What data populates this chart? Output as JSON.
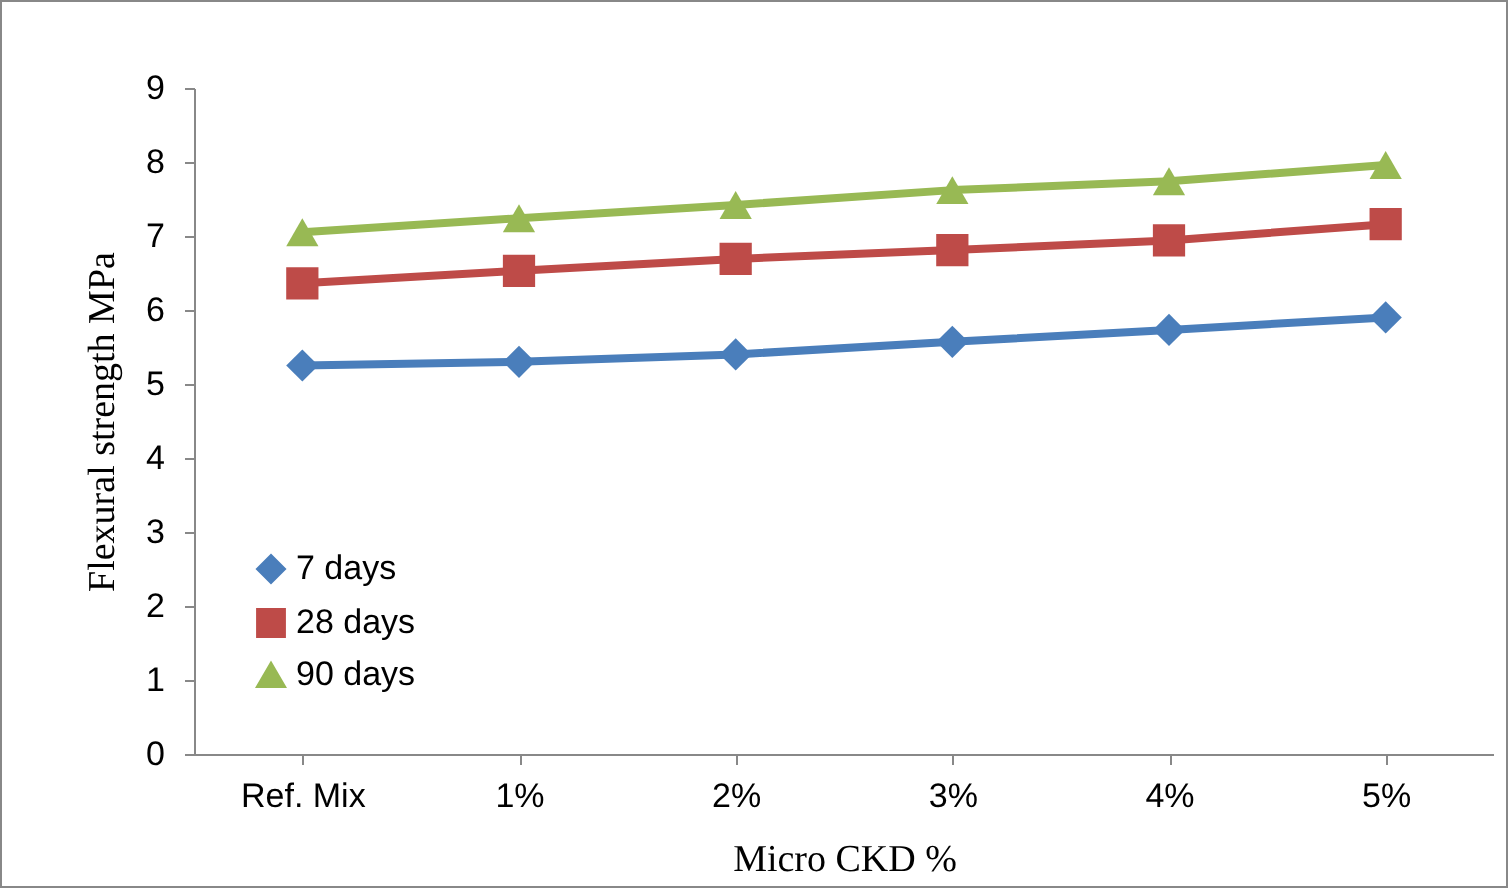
{
  "chart_data": {
    "type": "line",
    "xlabel": "Micro CKD %",
    "ylabel": "Flexural strength MPa",
    "categories": [
      "Ref. Mix",
      "1%",
      "2%",
      "3%",
      "4%",
      "5%"
    ],
    "ylim": [
      0,
      9
    ],
    "yticks": [
      0,
      1,
      2,
      3,
      4,
      5,
      6,
      7,
      8,
      9
    ],
    "grid": false,
    "legend": "bottom left",
    "series": [
      {
        "name": "7 days",
        "color": "#4a7ebb",
        "marker": "diamond",
        "values": [
          5.25,
          5.3,
          5.4,
          5.57,
          5.73,
          5.9
        ]
      },
      {
        "name": "28 days",
        "color": "#be4b48",
        "marker": "square",
        "values": [
          6.36,
          6.53,
          6.69,
          6.81,
          6.94,
          7.16
        ]
      },
      {
        "name": "90 days",
        "color": "#98b954",
        "marker": "triangle",
        "values": [
          7.05,
          7.24,
          7.42,
          7.62,
          7.74,
          7.96
        ]
      }
    ]
  }
}
